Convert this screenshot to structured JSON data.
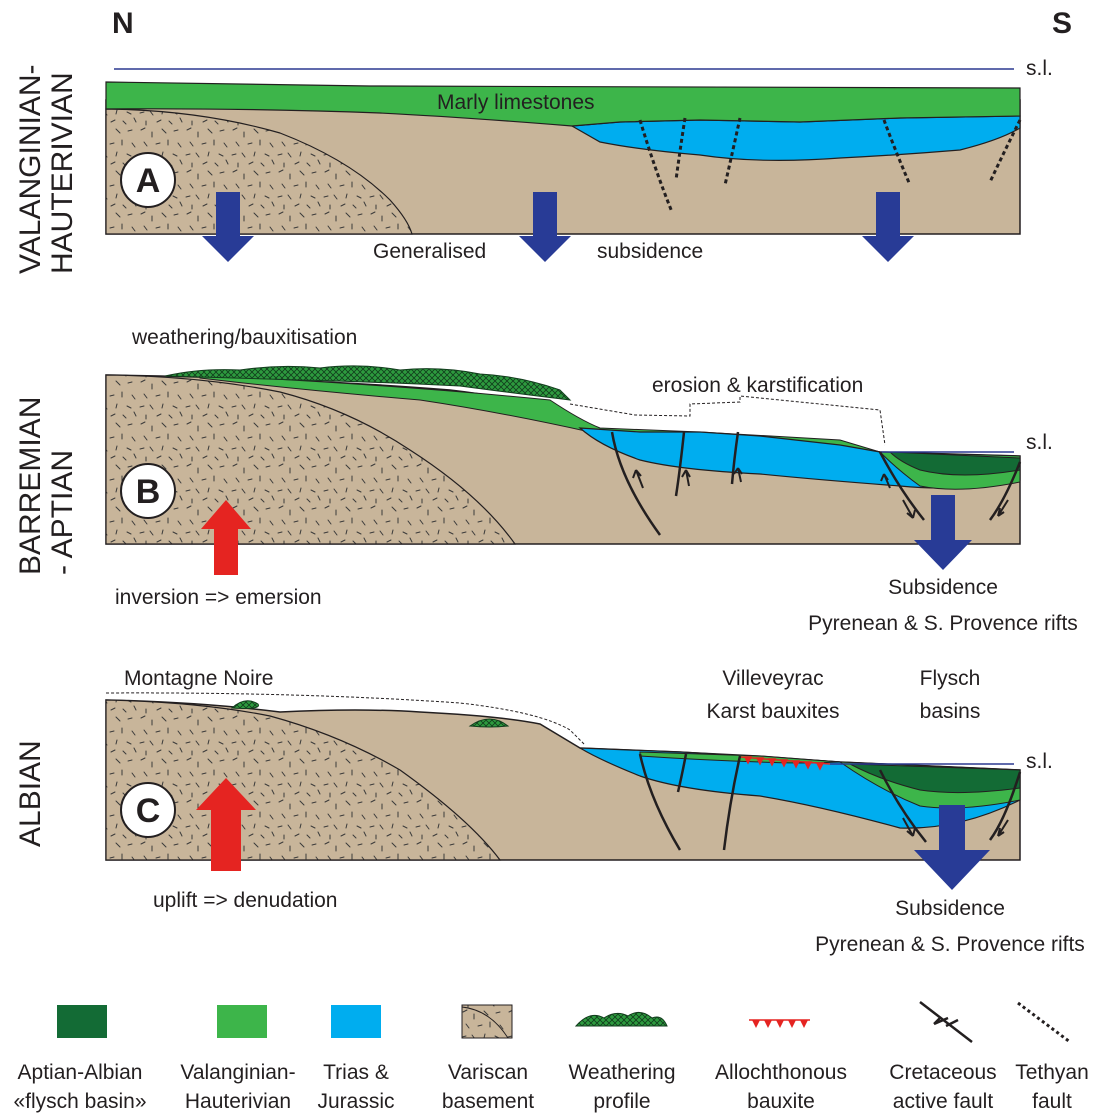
{
  "compass": {
    "north": "N",
    "south": "S"
  },
  "sea_level": "s.l.",
  "panels": [
    {
      "letter": "A",
      "stage_line1": "VALANGINIAN-",
      "stage_line2": "HAUTERIVIAN",
      "labels": {
        "marly": "Marly limestones",
        "gen": "Generalised",
        "subs": "subsidence"
      }
    },
    {
      "letter": "B",
      "stage_line1": "BARREMIAN",
      "stage_line2": "- APTIAN",
      "labels": {
        "weathering": "weathering/bauxitisation",
        "erosion": "erosion & karstification",
        "inversion": "inversion => emersion",
        "subsidence": "Subsidence",
        "rifts": "Pyrenean & S. Provence rifts"
      }
    },
    {
      "letter": "C",
      "stage_line1": "ALBIAN",
      "labels": {
        "montagne": "Montagne Noire",
        "villeveyrac": "Villeveyrac",
        "karst": "Karst bauxites",
        "flysch": "Flysch",
        "basins": "basins",
        "uplift": "uplift => denudation",
        "subsidence": "Subsidence",
        "rifts": "Pyrenean & S. Provence rifts"
      }
    }
  ],
  "legend": [
    {
      "line1": "Aptian-Albian",
      "line2": "«flysch basin»",
      "icon": "dark-green-swatch",
      "color": "#136b35"
    },
    {
      "line1": "Valanginian-",
      "line2": "Hauterivian",
      "icon": "green-swatch",
      "color": "#3db54a"
    },
    {
      "line1": "Trias &",
      "line2": "Jurassic",
      "icon": "blue-swatch",
      "color": "#00adef"
    },
    {
      "line1": "Variscan",
      "line2": "basement",
      "icon": "basement-swatch",
      "color": "#c8b59a"
    },
    {
      "line1": "Weathering",
      "line2": "profile",
      "icon": "weathering-symbol",
      "color": "#2d9a3e"
    },
    {
      "line1": "Allochthonous",
      "line2": "bauxite",
      "icon": "bauxite-symbol",
      "color": "#e52421"
    },
    {
      "line1": "Cretaceous",
      "line2": "active fault",
      "icon": "fault-arrows-icon",
      "color": "#231f20"
    },
    {
      "line1": "Tethyan",
      "line2": "fault",
      "icon": "dashed-fault-icon",
      "color": "#231f20"
    }
  ],
  "colors": {
    "basement": "#c8b59a",
    "valanginian": "#3db54a",
    "trias": "#00adef",
    "flysch": "#136b35",
    "sea_line": "#2b3990",
    "subsidence_arrow": "#283b96",
    "uplift_arrow": "#e52421",
    "bauxite": "#e52421"
  }
}
